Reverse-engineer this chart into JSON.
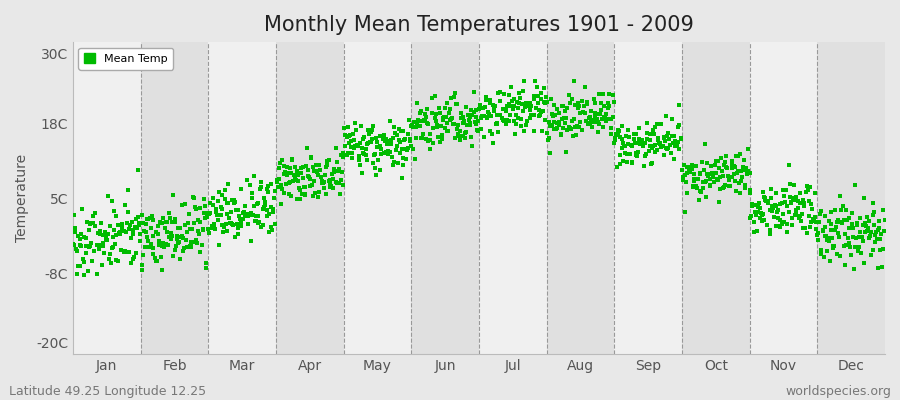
{
  "title": "Monthly Mean Temperatures 1901 - 2009",
  "ylabel": "Temperature",
  "yticks": [
    -20,
    -8,
    5,
    18,
    30
  ],
  "ytick_labels": [
    "-20C",
    "-8C",
    "5C",
    "18C",
    "30C"
  ],
  "ylim": [
    -22,
    32
  ],
  "months": [
    "Jan",
    "Feb",
    "Mar",
    "Apr",
    "May",
    "Jun",
    "Jul",
    "Aug",
    "Sep",
    "Oct",
    "Nov",
    "Dec"
  ],
  "mean_temps": [
    -2.5,
    -1.5,
    2.5,
    8.0,
    13.5,
    17.5,
    19.5,
    18.5,
    14.0,
    8.5,
    2.5,
    -1.5
  ],
  "temp_std": [
    3.0,
    3.2,
    2.5,
    2.0,
    2.0,
    2.0,
    2.0,
    2.0,
    2.0,
    2.0,
    2.5,
    2.8
  ],
  "warming_trend": 0.008,
  "n_years": 109,
  "start_year": 1901,
  "dot_color": "#00bb00",
  "dot_size": 5,
  "background_color": "#e8e8e8",
  "plot_bg_color_light": "#f0f0f0",
  "plot_bg_color_dark": "#e0e0e0",
  "grid_color": "#999999",
  "title_fontsize": 15,
  "axis_fontsize": 10,
  "tick_fontsize": 10,
  "legend_label": "Mean Temp",
  "subtitle_left": "Latitude 49.25 Longitude 12.25",
  "subtitle_right": "worldspecies.org",
  "subtitle_fontsize": 9,
  "seed": 42
}
